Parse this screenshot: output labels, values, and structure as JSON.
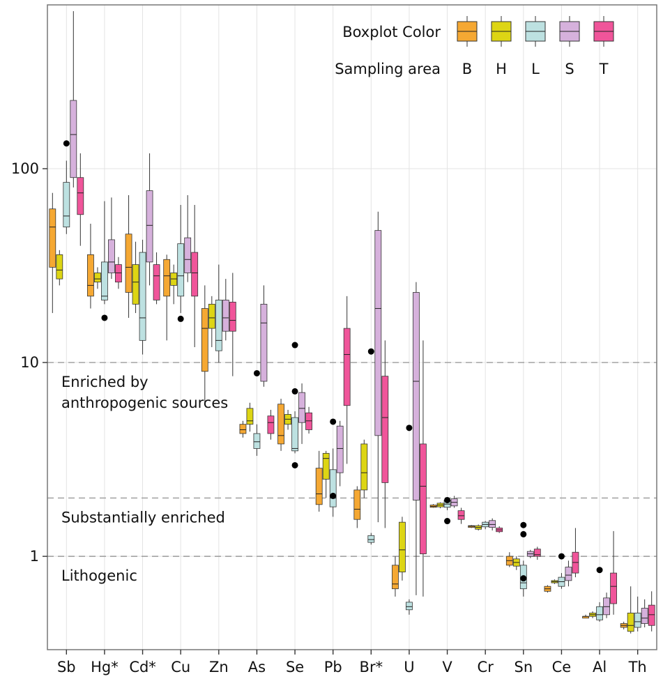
{
  "chart_data": {
    "type": "boxplot",
    "y_scale": "log",
    "ylim": [
      0.33,
      700
    ],
    "y_ticks": [
      {
        "value": 1,
        "label": "1"
      },
      {
        "value": 10,
        "label": "10"
      },
      {
        "value": 100,
        "label": "100"
      }
    ],
    "grid": true,
    "categories": [
      "Sb",
      "Hg*",
      "Cd*",
      "Cu",
      "Zn",
      "As",
      "Se",
      "Pb",
      "Br*",
      "U",
      "V",
      "Cr",
      "Sn",
      "Ce",
      "Al",
      "Th"
    ],
    "series": [
      {
        "name": "B",
        "color": "#F5A833"
      },
      {
        "name": "H",
        "color": "#DDD514"
      },
      {
        "name": "L",
        "color": "#BDE1E1"
      },
      {
        "name": "S",
        "color": "#D6B1DC"
      },
      {
        "name": "T",
        "color": "#F0559A"
      }
    ],
    "legend": {
      "placement": "top-right",
      "color_title": "Boxplot Color",
      "area_title": "Sampling area",
      "labels": [
        "B",
        "H",
        "L",
        "S",
        "T"
      ]
    },
    "reference_lines": [
      {
        "value": 10,
        "label": "Enriched by",
        "label2": "anthropogenic sources",
        "style": "dashed"
      },
      {
        "value": 2,
        "label": "Substantially enriched",
        "style": "dashed"
      },
      {
        "value": 1,
        "label": "Lithogenic",
        "style": "dashed"
      }
    ],
    "boxes": [
      {
        "category": "Sb",
        "series": "B",
        "min": 18,
        "q1": 31,
        "median": 50,
        "q3": 62,
        "max": 75
      },
      {
        "category": "Sb",
        "series": "H",
        "min": 25,
        "q1": 27,
        "median": 30,
        "q3": 36,
        "max": 38
      },
      {
        "category": "Sb",
        "series": "L",
        "min": 46,
        "q1": 50,
        "median": 57,
        "q3": 85,
        "max": 110
      },
      {
        "category": "Sb",
        "series": "S",
        "min": 80,
        "q1": 90,
        "median": 150,
        "q3": 225,
        "max": 650
      },
      {
        "category": "Sb",
        "series": "T",
        "min": 40,
        "q1": 58,
        "median": 75,
        "q3": 90,
        "max": 120
      },
      {
        "category": "Hg*",
        "series": "B",
        "min": 19,
        "q1": 22,
        "median": 25,
        "q3": 36,
        "max": 52
      },
      {
        "category": "Hg*",
        "series": "H",
        "min": 24,
        "q1": 26,
        "median": 27,
        "q3": 29,
        "max": 31
      },
      {
        "category": "Hg*",
        "series": "L",
        "min": 20,
        "q1": 21,
        "median": 22,
        "q3": 33,
        "max": 68
      },
      {
        "category": "Hg*",
        "series": "S",
        "min": 27,
        "q1": 29,
        "median": 33,
        "q3": 43,
        "max": 71
      },
      {
        "category": "Hg*",
        "series": "T",
        "min": 24,
        "q1": 26,
        "median": 29,
        "q3": 32,
        "max": 35
      },
      {
        "category": "Cd*",
        "series": "B",
        "min": 17,
        "q1": 23,
        "median": 31,
        "q3": 46,
        "max": 73
      },
      {
        "category": "Cd*",
        "series": "H",
        "min": 18,
        "q1": 20,
        "median": 26,
        "q3": 32,
        "max": 42
      },
      {
        "category": "Cd*",
        "series": "L",
        "min": 11,
        "q1": 13,
        "median": 17,
        "q3": 37,
        "max": 43
      },
      {
        "category": "Cd*",
        "series": "S",
        "min": 25,
        "q1": 33,
        "median": 51,
        "q3": 77,
        "max": 120
      },
      {
        "category": "Cd*",
        "series": "T",
        "min": 20,
        "q1": 21,
        "median": 28,
        "q3": 32,
        "max": 37
      },
      {
        "category": "Cu",
        "series": "B",
        "min": 13,
        "q1": 22,
        "median": 28,
        "q3": 34,
        "max": 36
      },
      {
        "category": "Cu",
        "series": "H",
        "min": 20,
        "q1": 25,
        "median": 27,
        "q3": 29,
        "max": 32
      },
      {
        "category": "Cu",
        "series": "L",
        "min": 18,
        "q1": 22,
        "median": 28,
        "q3": 41,
        "max": 65
      },
      {
        "category": "Cu",
        "series": "S",
        "min": 26,
        "q1": 29,
        "median": 34,
        "q3": 44,
        "max": 73
      },
      {
        "category": "Cu",
        "series": "T",
        "min": 12,
        "q1": 22,
        "median": 29,
        "q3": 37,
        "max": 65
      },
      {
        "category": "Zn",
        "series": "B",
        "min": 6,
        "q1": 9,
        "median": 15,
        "q3": 19,
        "max": 25
      },
      {
        "category": "Zn",
        "series": "H",
        "min": 12,
        "q1": 15,
        "median": 17,
        "q3": 20,
        "max": 22
      },
      {
        "category": "Zn",
        "series": "L",
        "min": 10,
        "q1": 11.5,
        "median": 13,
        "q3": 21,
        "max": 32
      },
      {
        "category": "Zn",
        "series": "S",
        "min": 13,
        "q1": 14.5,
        "median": 17,
        "q3": 21,
        "max": 27
      },
      {
        "category": "Zn",
        "series": "T",
        "min": 8.5,
        "q1": 14.5,
        "median": 16.5,
        "q3": 20.5,
        "max": 29
      },
      {
        "category": "As",
        "series": "B",
        "min": 4.1,
        "q1": 4.3,
        "median": 4.5,
        "q3": 4.8,
        "max": 5.0
      },
      {
        "category": "As",
        "series": "H",
        "min": 4.4,
        "q1": 4.8,
        "median": 5.0,
        "q3": 5.8,
        "max": 6.2
      },
      {
        "category": "As",
        "series": "L",
        "min": 3.3,
        "q1": 3.6,
        "median": 3.9,
        "q3": 4.3,
        "max": 4.8
      },
      {
        "category": "As",
        "series": "S",
        "min": 7.5,
        "q1": 8.0,
        "median": 16,
        "q3": 20,
        "max": 25
      },
      {
        "category": "As",
        "series": "T",
        "min": 4.0,
        "q1": 4.3,
        "median": 4.9,
        "q3": 5.3,
        "max": 5.7
      },
      {
        "category": "Se",
        "series": "B",
        "min": 3.5,
        "q1": 3.8,
        "median": 4.2,
        "q3": 6.1,
        "max": 6.5
      },
      {
        "category": "Se",
        "series": "H",
        "min": 4.5,
        "q1": 4.8,
        "median": 5.1,
        "q3": 5.4,
        "max": 5.7
      },
      {
        "category": "Se",
        "series": "L",
        "min": 3.4,
        "q1": 3.5,
        "median": 3.6,
        "q3": 5.2,
        "max": 5.6
      },
      {
        "category": "Se",
        "series": "S",
        "min": 3.8,
        "q1": 4.9,
        "median": 5.8,
        "q3": 7.0,
        "max": 7.8
      },
      {
        "category": "Se",
        "series": "T",
        "min": 4.3,
        "q1": 4.5,
        "median": 5.0,
        "q3": 5.5,
        "max": 5.9
      },
      {
        "category": "Pb",
        "series": "B",
        "min": 1.7,
        "q1": 1.85,
        "median": 2.1,
        "q3": 2.85,
        "max": 3.5
      },
      {
        "category": "Pb",
        "series": "H",
        "min": 2.0,
        "q1": 2.5,
        "median": 3.2,
        "q3": 3.4,
        "max": 3.5
      },
      {
        "category": "Pb",
        "series": "L",
        "min": 1.6,
        "q1": 1.8,
        "median": 2.0,
        "q3": 2.8,
        "max": 3.6
      },
      {
        "category": "Pb",
        "series": "S",
        "min": 2.3,
        "q1": 2.7,
        "median": 3.6,
        "q3": 4.7,
        "max": 5.0
      },
      {
        "category": "Pb",
        "series": "T",
        "min": 3.0,
        "q1": 6.0,
        "median": 11,
        "q3": 15,
        "max": 22
      },
      {
        "category": "Br*",
        "series": "B",
        "min": 1.4,
        "q1": 1.55,
        "median": 1.75,
        "q3": 2.2,
        "max": 2.3
      },
      {
        "category": "Br*",
        "series": "H",
        "min": 2.0,
        "q1": 2.2,
        "median": 2.7,
        "q3": 3.8,
        "max": 4.0
      },
      {
        "category": "Br*",
        "series": "L",
        "min": 1.15,
        "q1": 1.18,
        "median": 1.22,
        "q3": 1.28,
        "max": 1.32
      },
      {
        "category": "Br*",
        "series": "S",
        "min": 1.5,
        "q1": 4.2,
        "median": 19,
        "q3": 48,
        "max": 60
      },
      {
        "category": "Br*",
        "series": "T",
        "min": 1.4,
        "q1": 2.4,
        "median": 5.2,
        "q3": 8.5,
        "max": 13
      },
      {
        "category": "U",
        "series": "B",
        "min": 0.62,
        "q1": 0.68,
        "median": 0.72,
        "q3": 0.9,
        "max": 1.0
      },
      {
        "category": "U",
        "series": "H",
        "min": 0.75,
        "q1": 0.83,
        "median": 1.08,
        "q3": 1.5,
        "max": 1.6
      },
      {
        "category": "U",
        "series": "L",
        "min": 0.5,
        "q1": 0.53,
        "median": 0.55,
        "q3": 0.58,
        "max": 0.6
      },
      {
        "category": "U",
        "series": "S",
        "min": 0.63,
        "q1": 1.95,
        "median": 8.0,
        "q3": 23,
        "max": 26
      },
      {
        "category": "U",
        "series": "T",
        "min": 0.62,
        "q1": 1.03,
        "median": 2.3,
        "q3": 3.8,
        "max": 13
      },
      {
        "category": "V",
        "series": "B",
        "min": 1.78,
        "q1": 1.79,
        "median": 1.81,
        "q3": 1.84,
        "max": 1.86
      },
      {
        "category": "V",
        "series": "H",
        "min": 1.77,
        "q1": 1.8,
        "median": 1.84,
        "q3": 1.88,
        "max": 1.9
      },
      {
        "category": "V",
        "series": "L",
        "min": 1.73,
        "q1": 1.79,
        "median": 1.86,
        "q3": 1.95,
        "max": 2.0
      },
      {
        "category": "V",
        "series": "S",
        "min": 1.78,
        "q1": 1.82,
        "median": 1.9,
        "q3": 1.98,
        "max": 2.05
      },
      {
        "category": "V",
        "series": "T",
        "min": 1.47,
        "q1": 1.55,
        "median": 1.62,
        "q3": 1.72,
        "max": 1.78
      },
      {
        "category": "Cr",
        "series": "B",
        "min": 1.4,
        "q1": 1.41,
        "median": 1.43,
        "q3": 1.44,
        "max": 1.45
      },
      {
        "category": "Cr",
        "series": "H",
        "min": 1.36,
        "q1": 1.38,
        "median": 1.41,
        "q3": 1.44,
        "max": 1.46
      },
      {
        "category": "Cr",
        "series": "L",
        "min": 1.38,
        "q1": 1.42,
        "median": 1.46,
        "q3": 1.5,
        "max": 1.52
      },
      {
        "category": "Cr",
        "series": "S",
        "min": 1.36,
        "q1": 1.41,
        "median": 1.46,
        "q3": 1.53,
        "max": 1.57
      },
      {
        "category": "Cr",
        "series": "T",
        "min": 1.32,
        "q1": 1.34,
        "median": 1.37,
        "q3": 1.4,
        "max": 1.43
      },
      {
        "category": "Sn",
        "series": "B",
        "min": 0.88,
        "q1": 0.9,
        "median": 0.95,
        "q3": 1.0,
        "max": 1.05
      },
      {
        "category": "Sn",
        "series": "H",
        "min": 0.85,
        "q1": 0.89,
        "median": 0.93,
        "q3": 0.97,
        "max": 1.0
      },
      {
        "category": "Sn",
        "series": "L",
        "min": 0.62,
        "q1": 0.68,
        "median": 0.73,
        "q3": 0.9,
        "max": 0.95
      },
      {
        "category": "Sn",
        "series": "S",
        "min": 0.98,
        "q1": 1.0,
        "median": 1.03,
        "q3": 1.06,
        "max": 1.08
      },
      {
        "category": "Sn",
        "series": "T",
        "min": 0.96,
        "q1": 1.0,
        "median": 1.02,
        "q3": 1.09,
        "max": 1.12
      },
      {
        "category": "Ce",
        "series": "B",
        "min": 0.65,
        "q1": 0.66,
        "median": 0.68,
        "q3": 0.7,
        "max": 0.71
      },
      {
        "category": "Ce",
        "series": "H",
        "min": 0.72,
        "q1": 0.73,
        "median": 0.74,
        "q3": 0.75,
        "max": 0.76
      },
      {
        "category": "Ce",
        "series": "L",
        "min": 0.68,
        "q1": 0.7,
        "median": 0.74,
        "q3": 0.78,
        "max": 0.82
      },
      {
        "category": "Ce",
        "series": "S",
        "min": 0.7,
        "q1": 0.75,
        "median": 0.8,
        "q3": 0.88,
        "max": 0.95
      },
      {
        "category": "Ce",
        "series": "T",
        "min": 0.78,
        "q1": 0.82,
        "median": 0.93,
        "q3": 1.05,
        "max": 1.4
      },
      {
        "category": "Al",
        "series": "B",
        "min": 0.48,
        "q1": 0.48,
        "median": 0.49,
        "q3": 0.49,
        "max": 0.5
      },
      {
        "category": "Al",
        "series": "H",
        "min": 0.48,
        "q1": 0.49,
        "median": 0.5,
        "q3": 0.51,
        "max": 0.52
      },
      {
        "category": "Al",
        "series": "L",
        "min": 0.46,
        "q1": 0.47,
        "median": 0.5,
        "q3": 0.55,
        "max": 0.58
      },
      {
        "category": "Al",
        "series": "S",
        "min": 0.48,
        "q1": 0.5,
        "median": 0.55,
        "q3": 0.61,
        "max": 0.65
      },
      {
        "category": "Al",
        "series": "T",
        "min": 0.5,
        "q1": 0.57,
        "median": 0.7,
        "q3": 0.82,
        "max": 1.35
      },
      {
        "category": "Th",
        "series": "B",
        "min": 0.42,
        "q1": 0.43,
        "median": 0.44,
        "q3": 0.45,
        "max": 0.46
      },
      {
        "category": "Th",
        "series": "H",
        "min": 0.4,
        "q1": 0.41,
        "median": 0.44,
        "q3": 0.51,
        "max": 0.7
      },
      {
        "category": "Th",
        "series": "L",
        "min": 0.41,
        "q1": 0.43,
        "median": 0.46,
        "q3": 0.51,
        "max": 0.62
      },
      {
        "category": "Th",
        "series": "S",
        "min": 0.43,
        "q1": 0.45,
        "median": 0.48,
        "q3": 0.54,
        "max": 0.6
      },
      {
        "category": "Th",
        "series": "T",
        "min": 0.41,
        "q1": 0.44,
        "median": 0.5,
        "q3": 0.56,
        "max": 0.66
      }
    ],
    "points": [
      {
        "category": "Sb",
        "y": 135
      },
      {
        "category": "Hg*",
        "y": 17
      },
      {
        "category": "Cu",
        "y": 16.8
      },
      {
        "category": "As",
        "y": 8.8
      },
      {
        "category": "Se",
        "y": 7.1
      },
      {
        "category": "Se",
        "y": 12.3
      },
      {
        "category": "Se",
        "y": 2.95
      },
      {
        "category": "Pb",
        "y": 4.95
      },
      {
        "category": "Pb",
        "y": 2.05
      },
      {
        "category": "Br*",
        "y": 11.4
      },
      {
        "category": "U",
        "y": 4.6
      },
      {
        "category": "V",
        "y": 1.95
      },
      {
        "category": "V",
        "y": 1.52
      },
      {
        "category": "Sn",
        "y": 1.45
      },
      {
        "category": "Sn",
        "y": 1.3
      },
      {
        "category": "Sn",
        "y": 0.77
      },
      {
        "category": "Ce",
        "y": 1.0
      },
      {
        "category": "Al",
        "y": 0.85
      }
    ]
  }
}
